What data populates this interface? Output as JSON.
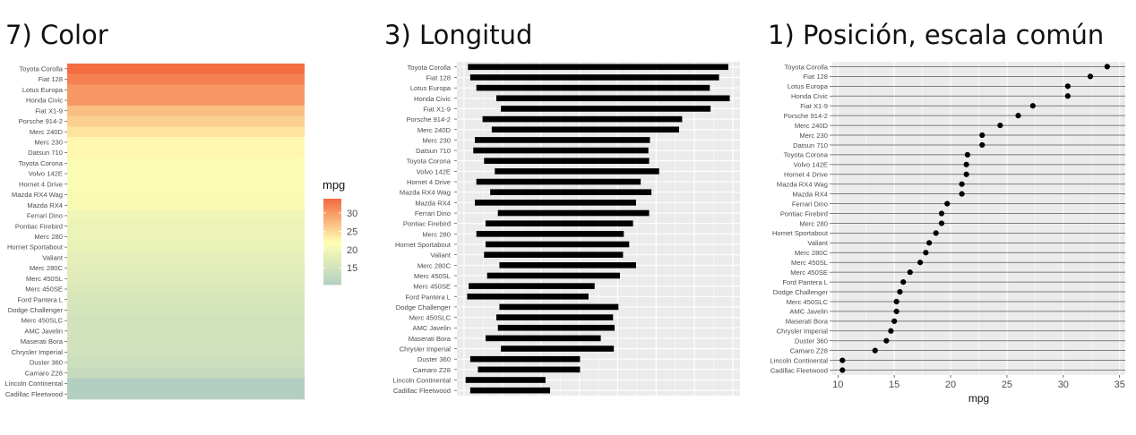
{
  "chart_data": [
    {
      "type": "heatmap",
      "title": "7) Color",
      "categories": [
        "Toyota Corolla",
        "Fiat 128",
        "Lotus Europa",
        "Honda Civic",
        "Fiat X1-9",
        "Porsche 914-2",
        "Merc 240D",
        "Merc 230",
        "Datsun 710",
        "Toyota Corona",
        "Volvo 142E",
        "Hornet 4 Drive",
        "Mazda RX4 Wag",
        "Mazda RX4",
        "Ferrari Dino",
        "Pontiac Firebird",
        "Merc 280",
        "Hornet Sportabout",
        "Valiant",
        "Merc 280C",
        "Merc 450SL",
        "Merc 450SE",
        "Ford Pantera L",
        "Dodge Challenger",
        "Merc 450SLC",
        "AMC Javelin",
        "Maserati Bora",
        "Chrysler Imperial",
        "Duster 360",
        "Camaro Z28",
        "Lincoln Continental",
        "Cadillac Fleetwood"
      ],
      "values": [
        33.9,
        32.4,
        30.4,
        30.4,
        27.3,
        26.0,
        24.4,
        22.8,
        22.8,
        21.5,
        21.4,
        21.4,
        21.0,
        21.0,
        19.7,
        19.2,
        19.2,
        18.7,
        18.1,
        17.8,
        17.3,
        16.4,
        15.8,
        15.5,
        15.2,
        15.2,
        15.0,
        14.7,
        14.3,
        13.3,
        10.4,
        10.4
      ],
      "legend": {
        "title": "mpg",
        "ticks": [
          15,
          20,
          25,
          30
        ],
        "range": [
          10.4,
          33.9
        ],
        "position": "right"
      },
      "colors": {
        "low": "#b3cfc2",
        "mid": "#ffffb3",
        "high": "#f46d43"
      }
    },
    {
      "type": "bar",
      "title": "3) Longitud",
      "categories": [
        "Toyota Corolla",
        "Fiat 128",
        "Lotus Europa",
        "Honda Civic",
        "Fiat X1-9",
        "Porsche 914-2",
        "Merc 240D",
        "Merc 230",
        "Datsun 710",
        "Toyota Corona",
        "Volvo 142E",
        "Hornet 4 Drive",
        "Mazda RX4 Wag",
        "Mazda RX4",
        "Ferrari Dino",
        "Pontiac Firebird",
        "Merc 280",
        "Hornet Sportabout",
        "Valiant",
        "Merc 280C",
        "Merc 450SL",
        "Merc 450SE",
        "Ford Pantera L",
        "Dodge Challenger",
        "Merc 450SLC",
        "AMC Javelin",
        "Maserati Bora",
        "Chrysler Imperial",
        "Duster 360",
        "Camaro Z28",
        "Lincoln Continental",
        "Cadillac Fleetwood"
      ],
      "values": [
        33.9,
        32.4,
        30.4,
        30.4,
        27.3,
        26.0,
        24.4,
        22.8,
        22.8,
        21.5,
        21.4,
        21.4,
        21.0,
        21.0,
        19.7,
        19.2,
        19.2,
        18.7,
        18.1,
        17.8,
        17.3,
        16.4,
        15.8,
        15.5,
        15.2,
        15.2,
        15.0,
        14.7,
        14.3,
        13.3,
        10.4,
        10.4
      ],
      "starts": [
        0.5,
        0.8,
        1.6,
        4.2,
        4.8,
        2.4,
        3.6,
        1.4,
        1.2,
        2.6,
        4.0,
        1.6,
        3.4,
        1.4,
        4.4,
        2.8,
        1.6,
        2.8,
        2.6,
        4.6,
        3.0,
        0.6,
        0.4,
        4.6,
        4.2,
        4.4,
        2.8,
        4.8,
        0.8,
        1.8,
        0.2,
        0.8
      ],
      "grid": true,
      "colors": {
        "bar": "#000000",
        "panel": "#ebebeb",
        "grid": "#ffffff"
      }
    },
    {
      "type": "scatter",
      "title": "1) Posición, escala común",
      "categories": [
        "Toyota Corolla",
        "Fiat 128",
        "Lotus Europa",
        "Honda Civic",
        "Fiat X1-9",
        "Porsche 914-2",
        "Merc 240D",
        "Merc 230",
        "Datsun 710",
        "Toyota Corona",
        "Volvo 142E",
        "Hornet 4 Drive",
        "Mazda RX4 Wag",
        "Mazda RX4",
        "Ferrari Dino",
        "Pontiac Firebird",
        "Merc 280",
        "Hornet Sportabout",
        "Valiant",
        "Merc 280C",
        "Merc 450SL",
        "Merc 450SE",
        "Ford Pantera L",
        "Dodge Challenger",
        "Merc 450SLC",
        "AMC Javelin",
        "Maserati Bora",
        "Chrysler Imperial",
        "Duster 360",
        "Camaro Z28",
        "Lincoln Continental",
        "Cadillac Fleetwood"
      ],
      "values": [
        33.9,
        32.4,
        30.4,
        30.4,
        27.3,
        26.0,
        24.4,
        22.8,
        22.8,
        21.5,
        21.4,
        21.4,
        21.0,
        21.0,
        19.7,
        19.2,
        19.2,
        18.7,
        18.1,
        17.8,
        17.3,
        16.4,
        15.8,
        15.5,
        15.2,
        15.2,
        15.0,
        14.7,
        14.3,
        13.3,
        10.4,
        10.4
      ],
      "xlabel": "mpg",
      "xlim": [
        9.5,
        35.5
      ],
      "xticks": [
        10,
        15,
        20,
        25,
        30,
        35
      ],
      "grid": true,
      "colors": {
        "point": "#000000",
        "panel": "#ebebeb",
        "grid": "#ffffff",
        "row_line": "#5a5a5a"
      }
    }
  ]
}
